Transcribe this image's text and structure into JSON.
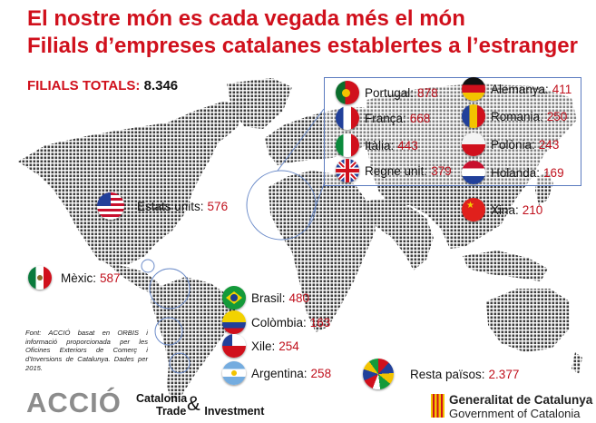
{
  "title_line1": "El nostre món es cada vegada més el món",
  "title_line2": "Filials d’empreses catalanes establertes a l’estranger",
  "totals": {
    "label": "FILIALS TOTALS:",
    "value": "8.346"
  },
  "countries": [
    {
      "name": "Portugal:",
      "value": "878",
      "flag": "portugal-flag-icon"
    },
    {
      "name": "França:",
      "value": "668",
      "flag": "france-flag-icon"
    },
    {
      "name": "Itàlia:",
      "value": "443",
      "flag": "italy-flag-icon"
    },
    {
      "name": "Regne unit:",
      "value": "379",
      "flag": "uk-flag-icon"
    },
    {
      "name": "Alemanya:",
      "value": "411",
      "flag": "germany-flag-icon"
    },
    {
      "name": "Romania:",
      "value": "250",
      "flag": "romania-flag-icon"
    },
    {
      "name": "Polònia:",
      "value": "243",
      "flag": "poland-flag-icon"
    },
    {
      "name": "Holanda:",
      "value": "169",
      "flag": "netherlands-flag-icon"
    },
    {
      "name": "Xina:",
      "value": "210",
      "flag": "china-flag-icon"
    },
    {
      "name": "Estats units:",
      "value": "576",
      "flag": "usa-flag-icon"
    },
    {
      "name": "Mèxic:",
      "value": "587",
      "flag": "mexico-flag-icon"
    },
    {
      "name": "Brasil:",
      "value": "480",
      "flag": "brazil-flag-icon"
    },
    {
      "name": "Colòmbia:",
      "value": "163",
      "flag": "colombia-flag-icon"
    },
    {
      "name": "Xile:",
      "value": "254",
      "flag": "chile-flag-icon"
    },
    {
      "name": "Argentina:",
      "value": "258",
      "flag": "argentina-flag-icon"
    },
    {
      "name": "Resta països:",
      "value": "2.377",
      "flag": "world-flags-icon"
    }
  ],
  "source_note": "Font: ACCIÓ basat en ORBIS i informació proporcionada per les Oficines Exteriors de Comerç i d'Inversions de Catalunya. Dades per 2015.",
  "logos": {
    "accio": "ACCIÓ",
    "cti_line1": "Catalonia",
    "cti_line2": "Trade",
    "cti_amp": "&",
    "cti_line3": "Investment",
    "gen_line1": "Generalitat de Catalunya",
    "gen_line2": "Government of Catalonia"
  },
  "colors": {
    "title_red": "#d0101c",
    "value_red": "#c0101c",
    "map_dots": "#3d3d3d",
    "circle_blue": "#6b8bc9"
  }
}
